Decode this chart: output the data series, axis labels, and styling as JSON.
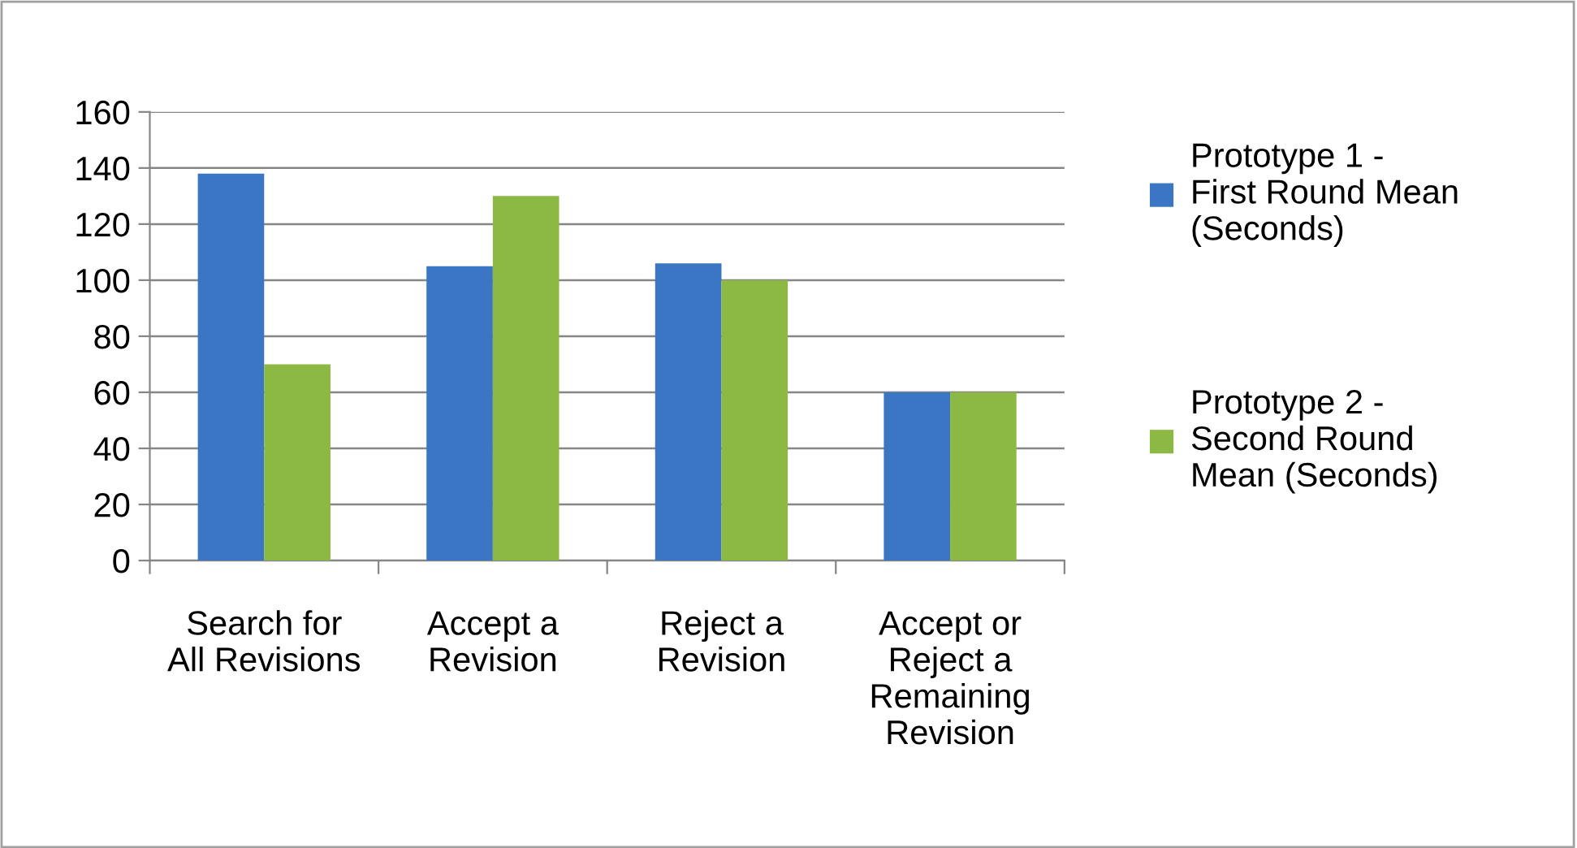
{
  "chart_data": {
    "type": "bar",
    "categories": [
      "Search for\nAll Revisions",
      "Accept a\nRevision",
      "Reject a\nRevision",
      "Accept or\nReject a\nRemaining\nRevision"
    ],
    "series": [
      {
        "name": "Prototype 1 -\nFirst Round Mean\n(Seconds)",
        "color": "#3a76c4",
        "values": [
          138,
          105,
          106,
          60
        ]
      },
      {
        "name": "Prototype 2 -\nSecond Round\nMean (Seconds)",
        "color": "#8cb944",
        "values": [
          70,
          130,
          100,
          60
        ]
      }
    ],
    "ylim": [
      0,
      160
    ],
    "yticks": [
      0,
      20,
      40,
      60,
      80,
      100,
      120,
      140,
      160
    ],
    "grid": "y",
    "legend": "right"
  }
}
